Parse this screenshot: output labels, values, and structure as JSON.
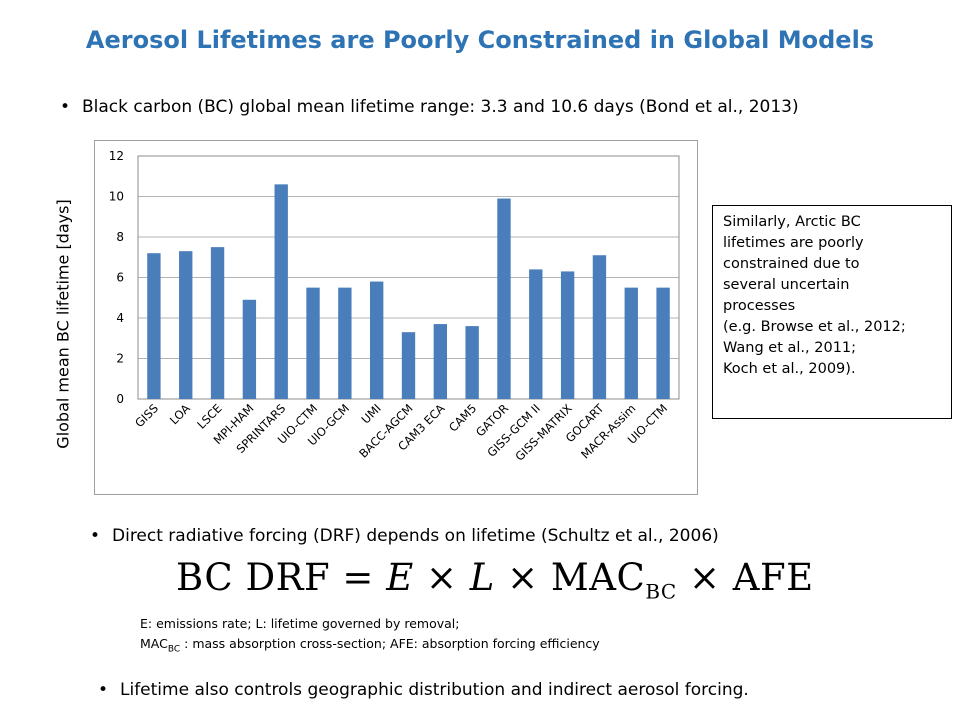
{
  "title": "Aerosol Lifetimes are Poorly Constrained in Global Models",
  "bullets": {
    "b1": "Black carbon (BC) global mean lifetime range: 3.3 and 10.6 days (Bond et al., 2013)",
    "b2": "Direct radiative forcing (DRF) depends on lifetime (Schultz et al., 2006)",
    "b3": "Lifetime also controls geographic distribution and indirect aerosol forcing.",
    "bullet_symbol": "•"
  },
  "note_box": {
    "lines": [
      "Similarly, Arctic BC",
      "lifetimes are poorly",
      "constrained due to",
      "several  uncertain",
      "processes",
      "(e.g. Browse et al., 2012;",
      "Wang et al., 2011;",
      "Koch et al., 2009)."
    ]
  },
  "equation": {
    "lhs": "BC DRF",
    "eq": "=",
    "E": "E",
    "times": "×",
    "L": "L",
    "mac": "MAC",
    "mac_sub": "BC",
    "afe": "AFE"
  },
  "definitions": {
    "line1": "E: emissions rate;  L: lifetime governed by removal;",
    "line2_mac": "MAC",
    "line2_sub": "BC",
    "line2_rest": " : mass absorption cross-section;  AFE: absorption forcing efficiency"
  },
  "chart_data": {
    "type": "bar",
    "title": "",
    "xlabel": "",
    "ylabel": "Global mean BC lifetime [days]",
    "categories": [
      "GISS",
      "LOA",
      "LSCE",
      "MPI-HAM",
      "SPRINTARS",
      "UIO-CTM",
      "UIO-GCM",
      "UMI",
      "BACC-AGCM",
      "CAM3 ECA",
      "CAM5",
      "GATOR",
      "GISS-GCM II",
      "GISS-MATRIX",
      "GOCART",
      "MACR-Assim",
      "UIO-CTM"
    ],
    "values": [
      7.2,
      7.3,
      7.5,
      4.9,
      10.6,
      5.5,
      5.5,
      5.8,
      3.3,
      3.7,
      3.6,
      9.9,
      6.4,
      6.3,
      7.1,
      5.5,
      5.5
    ],
    "ylim": [
      0,
      12
    ],
    "yticks": [
      "0",
      "2",
      "4",
      "6",
      "8",
      "10",
      "12"
    ],
    "grid": true,
    "bar_color": "#4a7ebb",
    "legend": "none"
  }
}
